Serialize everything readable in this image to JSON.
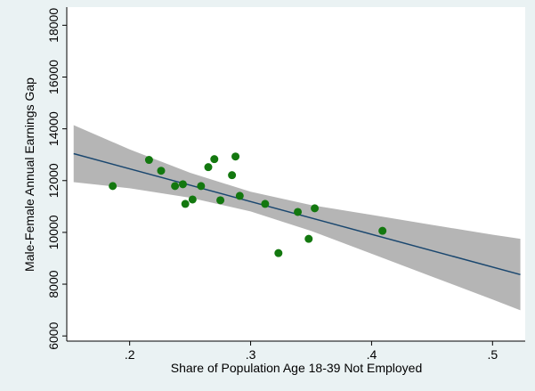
{
  "chart_data": {
    "type": "scatter",
    "x_label": "Share of Population Age 18-39 Not Employed",
    "y_label": "Male-Female Annual Earnings Gap",
    "xlim": [
      0.148,
      0.527
    ],
    "ylim": [
      5800,
      18700
    ],
    "xticks": [
      {
        "value": 0.2,
        "label": ".2"
      },
      {
        "value": 0.3,
        "label": ".3"
      },
      {
        "value": 0.4,
        "label": ".4"
      },
      {
        "value": 0.5,
        "label": ".5"
      }
    ],
    "yticks": [
      6000,
      8000,
      10000,
      12000,
      14000,
      16000,
      18000
    ],
    "grid": false,
    "band": {
      "color": "#b5b5b5",
      "x": [
        0.1537,
        0.2,
        0.25,
        0.3,
        0.35,
        0.4,
        0.45,
        0.5,
        0.523
      ],
      "upper": [
        14140,
        13205,
        12300,
        11570,
        11055,
        10675,
        10290,
        9910,
        9750
      ],
      "lower": [
        11940,
        11705,
        11340,
        10810,
        10055,
        9175,
        8290,
        7410,
        6990
      ]
    },
    "fit": {
      "color": "#1a476f",
      "x": [
        0.1537,
        0.523
      ],
      "values": [
        13040,
        8370
      ]
    },
    "points": {
      "color": "#13780f",
      "x": [
        0.186,
        0.216,
        0.226,
        0.2375,
        0.244,
        0.246,
        0.252,
        0.259,
        0.265,
        0.27,
        0.275,
        0.2846,
        0.2875,
        0.291,
        0.312,
        0.323,
        0.339,
        0.348,
        0.353,
        0.409
      ],
      "values": [
        11790,
        12800,
        12380,
        11790,
        11860,
        11100,
        11270,
        11790,
        12520,
        12830,
        11240,
        12210,
        12930,
        11410,
        11100,
        9200,
        10790,
        9750,
        10930,
        10060
      ]
    }
  }
}
